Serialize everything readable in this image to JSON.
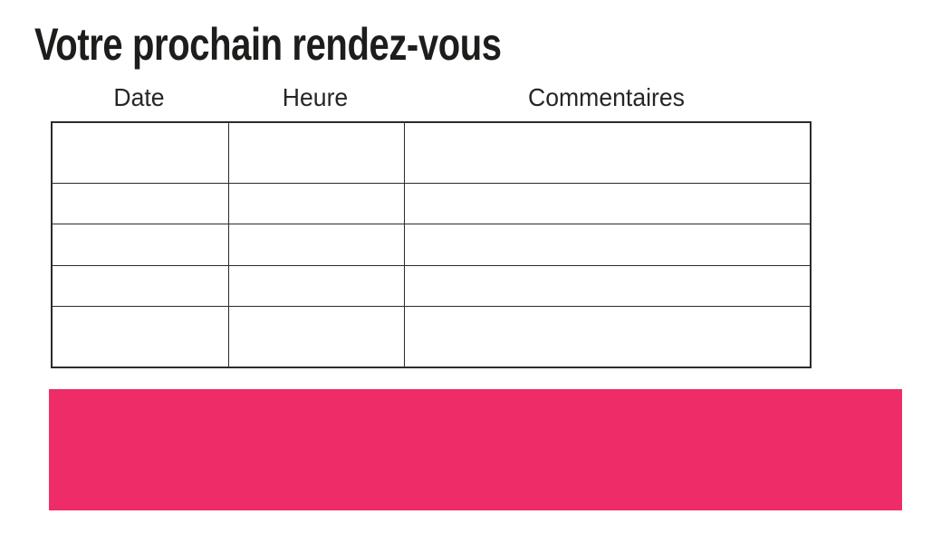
{
  "page": {
    "background": "#ffffff"
  },
  "title": {
    "text": "Votre prochain rendez-vous",
    "color": "#1d1d1b"
  },
  "table": {
    "headers": [
      "Date",
      "Heure",
      "Commentaires"
    ],
    "border_color": "#2b2b2b",
    "rows": [
      [
        "",
        "",
        ""
      ],
      [
        "",
        "",
        ""
      ],
      [
        "",
        "",
        ""
      ],
      [
        "",
        "",
        ""
      ],
      [
        "",
        "",
        ""
      ]
    ]
  },
  "banner": {
    "color": "#EE2D68"
  }
}
